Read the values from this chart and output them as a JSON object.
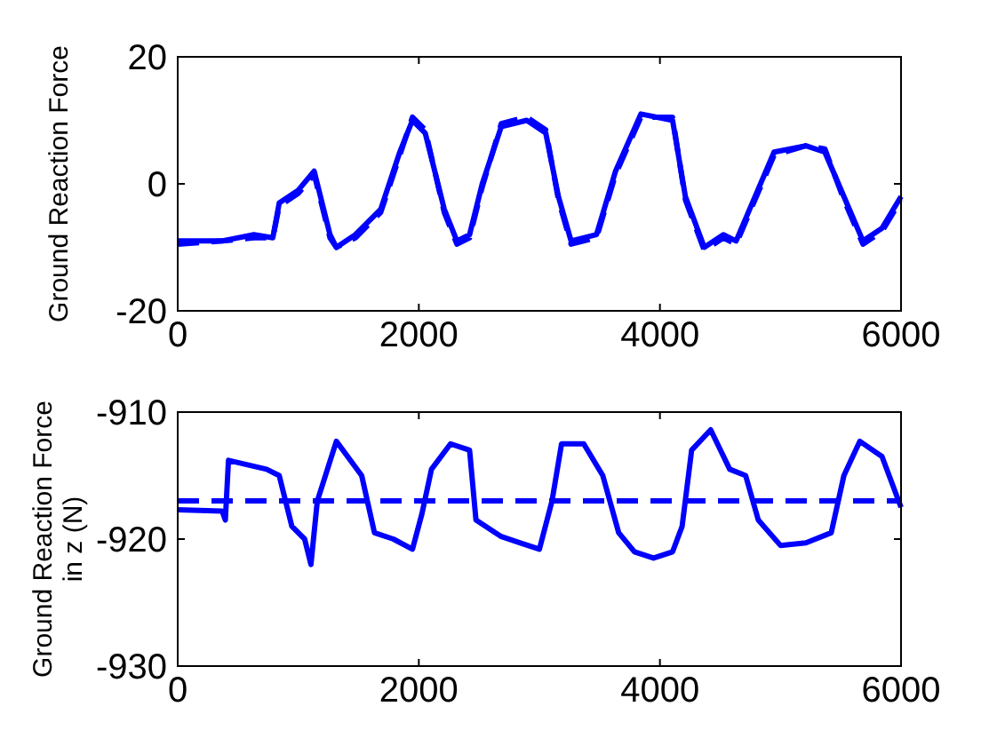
{
  "chart_data": [
    {
      "type": "line",
      "ylabel": "Ground Reaction Force",
      "xlim": [
        0,
        6000
      ],
      "ylim": [
        -20,
        20
      ],
      "xticks": [
        0,
        2000,
        4000,
        6000
      ],
      "yticks": [
        -20,
        0,
        20
      ],
      "grid": false,
      "series": [
        {
          "color": "#0000ff",
          "line_style": "solid",
          "x": [
            0,
            368,
            632,
            789,
            842,
            1000,
            1132,
            1158,
            1263,
            1316,
            1474,
            1684,
            1842,
            1947,
            2053,
            2211,
            2316,
            2421,
            2526,
            2684,
            2895,
            3053,
            3158,
            3263,
            3474,
            3632,
            3842,
            4105,
            4211,
            4368,
            4526,
            4632,
            4789,
            4947,
            5211,
            5368,
            5526,
            5684,
            5842,
            6000
          ],
          "values": [
            -9,
            -9,
            -8,
            -8.5,
            -3,
            -1,
            2,
            0,
            -8,
            -10,
            -8,
            -4,
            5,
            10,
            8,
            -4,
            -9,
            -8,
            0,
            9,
            10,
            8,
            -2,
            -9,
            -8,
            2,
            11,
            10,
            -2,
            -10,
            -8,
            -9,
            -2,
            5,
            6,
            5,
            -2,
            -9,
            -7,
            -2
          ]
        },
        {
          "color": "#0000ff",
          "line_style": "dashed",
          "x": [
            0,
            368,
            632,
            789,
            842,
            1000,
            1132,
            1158,
            1263,
            1316,
            1474,
            1684,
            1842,
            1947,
            2053,
            2211,
            2316,
            2421,
            2526,
            2684,
            2895,
            3053,
            3158,
            3263,
            3474,
            3632,
            3842,
            4105,
            4211,
            4368,
            4526,
            4632,
            4789,
            4947,
            5211,
            5368,
            5526,
            5684,
            5842,
            6000
          ],
          "values": [
            -9.5,
            -9,
            -8.5,
            -8.5,
            -3.5,
            -1.5,
            1.5,
            -0.5,
            -8.5,
            -10,
            -8.5,
            -4.5,
            4.5,
            10.5,
            8.5,
            -4.5,
            -9.5,
            -8.5,
            -0.5,
            9.5,
            10.5,
            8.5,
            -2.5,
            -9.5,
            -8.5,
            1.5,
            10.5,
            10.5,
            -2.5,
            -10.5,
            -8.5,
            -9.5,
            -2.5,
            4.5,
            6,
            5.5,
            -2.5,
            -9.5,
            -7.5,
            -2.5
          ]
        }
      ]
    },
    {
      "type": "line",
      "ylabel": "Ground Reaction Force in z (N)",
      "xlim": [
        0,
        6000
      ],
      "ylim": [
        -930,
        -910
      ],
      "xticks": [
        0,
        2000,
        4000,
        6000
      ],
      "yticks": [
        -930,
        -920,
        -910
      ],
      "grid": false,
      "ref_lines": [
        {
          "axis": "y",
          "value": -917,
          "color": "#0000ff",
          "line_style": "dashed"
        }
      ],
      "series": [
        {
          "color": "#0000ff",
          "line_style": "solid",
          "x": [
            0,
            368,
            395,
            421,
            737,
            842,
            947,
            1053,
            1105,
            1158,
            1316,
            1526,
            1632,
            1789,
            1947,
            2026,
            2105,
            2263,
            2421,
            2474,
            2684,
            2842,
            3000,
            3105,
            3184,
            3368,
            3526,
            3658,
            3789,
            3947,
            4105,
            4184,
            4263,
            4421,
            4579,
            4711,
            4816,
            5000,
            5211,
            5421,
            5526,
            5658,
            5842,
            6000
          ],
          "values": [
            -917.7,
            -917.8,
            -918.5,
            -913.8,
            -914.5,
            -915,
            -919,
            -920,
            -922,
            -917,
            -912.3,
            -915,
            -919.5,
            -920,
            -920.8,
            -918,
            -914.5,
            -912.5,
            -913,
            -918.5,
            -919.8,
            -920.3,
            -920.8,
            -917,
            -912.5,
            -912.5,
            -915,
            -919.5,
            -921,
            -921.5,
            -921,
            -919,
            -913,
            -911.4,
            -914.5,
            -915,
            -918.5,
            -920.5,
            -920.3,
            -919.5,
            -915,
            -912.3,
            -913.5,
            -917.5
          ]
        }
      ]
    }
  ]
}
